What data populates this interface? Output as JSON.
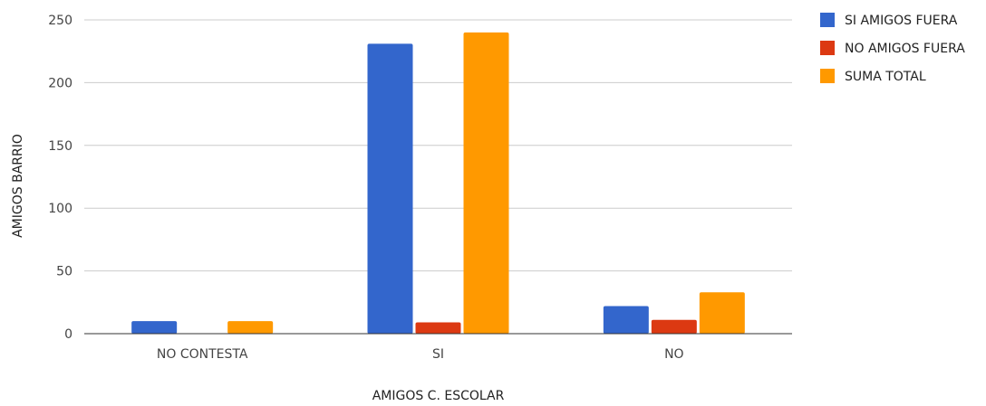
{
  "chart_data": {
    "type": "bar",
    "title": "",
    "xlabel": "AMIGOS C. ESCOLAR",
    "ylabel": "AMIGOS BARRIO",
    "categories": [
      "NO CONTESTA",
      "SI",
      "NO"
    ],
    "series": [
      {
        "name": "SI AMIGOS FUERA",
        "color": "#3366cc",
        "values": [
          10,
          231,
          22
        ]
      },
      {
        "name": "NO AMIGOS FUERA",
        "color": "#dc3912",
        "values": [
          0,
          9,
          11
        ]
      },
      {
        "name": "SUMA TOTAL",
        "color": "#ff9900",
        "values": [
          10,
          240,
          33
        ]
      }
    ],
    "ylim": [
      0,
      250
    ],
    "yticks": [
      0,
      50,
      100,
      150,
      200,
      250
    ],
    "grid": true,
    "legend_position": "right"
  }
}
